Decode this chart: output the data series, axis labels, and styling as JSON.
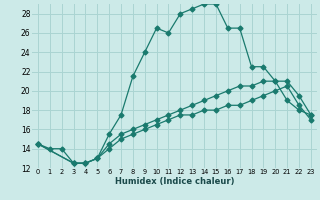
{
  "title": "",
  "xlabel": "Humidex (Indice chaleur)",
  "background_color": "#cceae8",
  "grid_color": "#aad4d2",
  "line_color": "#1a7a6e",
  "xlim": [
    -0.5,
    23.5
  ],
  "ylim": [
    12,
    29
  ],
  "yticks": [
    12,
    14,
    16,
    18,
    20,
    22,
    24,
    26,
    28
  ],
  "xticks": [
    0,
    1,
    2,
    3,
    4,
    5,
    6,
    7,
    8,
    9,
    10,
    11,
    12,
    13,
    14,
    15,
    16,
    17,
    18,
    19,
    20,
    21,
    22,
    23
  ],
  "series1_x": [
    0,
    1,
    2,
    3,
    4,
    5,
    6,
    7,
    8,
    9,
    10,
    11,
    12,
    13,
    14,
    15,
    16,
    17,
    18,
    19,
    20,
    21,
    22,
    23
  ],
  "series1_y": [
    14.5,
    14.0,
    14.0,
    12.5,
    12.5,
    13.0,
    15.5,
    17.5,
    21.5,
    24.0,
    26.5,
    26.0,
    28.0,
    28.5,
    29.0,
    29.0,
    26.5,
    26.5,
    22.5,
    22.5,
    21.0,
    19.0,
    18.0,
    17.5
  ],
  "series2_x": [
    0,
    3,
    4,
    5,
    6,
    7,
    8,
    9,
    10,
    11,
    12,
    13,
    14,
    15,
    16,
    17,
    18,
    19,
    20,
    21,
    22,
    23
  ],
  "series2_y": [
    14.5,
    12.5,
    12.5,
    13.0,
    14.5,
    15.5,
    16.0,
    16.5,
    17.0,
    17.5,
    18.0,
    18.5,
    19.0,
    19.5,
    20.0,
    20.5,
    20.5,
    21.0,
    21.0,
    21.0,
    19.5,
    17.5
  ],
  "series3_x": [
    0,
    3,
    4,
    5,
    6,
    7,
    8,
    9,
    10,
    11,
    12,
    13,
    14,
    15,
    16,
    17,
    18,
    19,
    20,
    21,
    22,
    23
  ],
  "series3_y": [
    14.5,
    12.5,
    12.5,
    13.0,
    14.0,
    15.0,
    15.5,
    16.0,
    16.5,
    17.0,
    17.5,
    17.5,
    18.0,
    18.0,
    18.5,
    18.5,
    19.0,
    19.5,
    20.0,
    20.5,
    18.5,
    17.0
  ]
}
